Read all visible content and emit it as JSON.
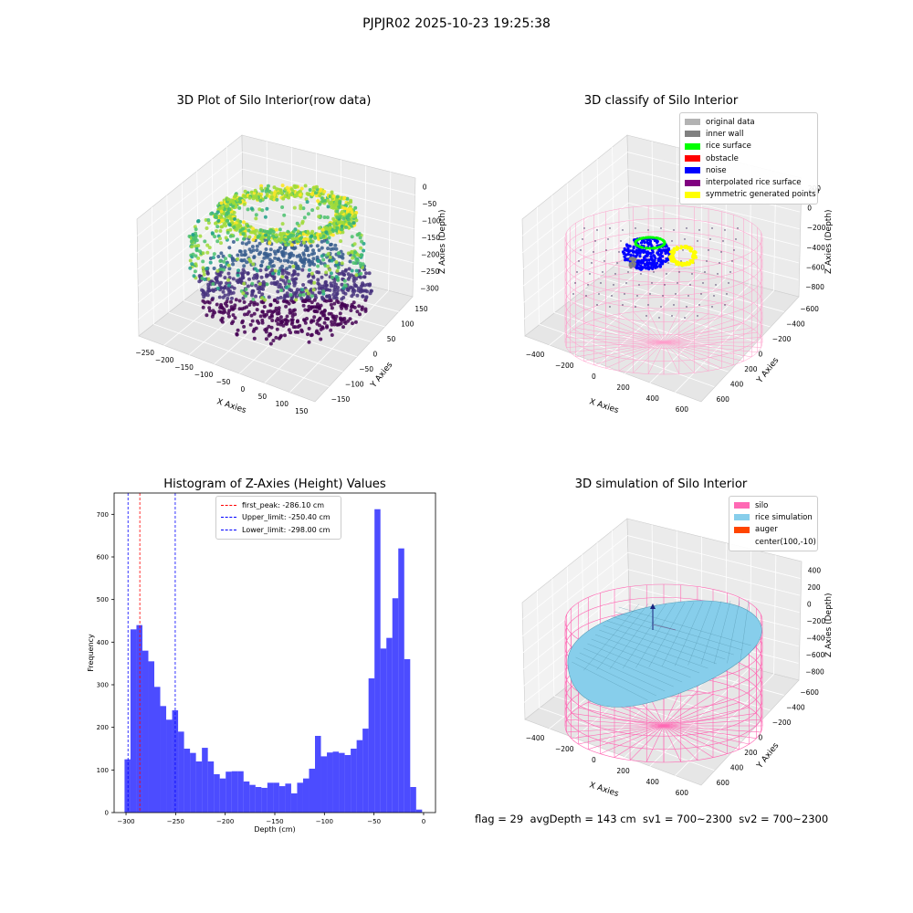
{
  "suptitle": "PJPJR02 2025-10-23 19:25:38",
  "panels": {
    "raw": {
      "title": "3D Plot of Silo Interior(row data)",
      "xlabel": "X Axies",
      "ylabel": "Y Axies",
      "zlabel": "Z Axies (Depth)",
      "xticks": [
        "−250",
        "−200",
        "−150",
        "−100",
        "−50",
        "0",
        "50",
        "100",
        "150"
      ],
      "yticks": [
        "−150",
        "−100",
        "−50",
        "0",
        "50",
        "100",
        "150"
      ],
      "zticks": [
        "0",
        "−50",
        "−100",
        "−150",
        "−200",
        "−250",
        "−300"
      ]
    },
    "classify": {
      "title": "3D classify of Silo Interior",
      "xlabel": "X Axies",
      "ylabel": "Y Axies",
      "zlabel": "Z Axies (Depth)",
      "xticks": [
        "−400",
        "−200",
        "0",
        "200",
        "400",
        "600"
      ],
      "yticks": [
        "600",
        "400",
        "200",
        "0",
        "−200",
        "−400",
        "−600"
      ],
      "zticks": [
        "200",
        "0",
        "−200",
        "−400",
        "−600",
        "−800"
      ],
      "legend": [
        {
          "label": "original data",
          "color": "#b3b3b3"
        },
        {
          "label": "inner wall",
          "color": "#808080"
        },
        {
          "label": "rice surface",
          "color": "#00ff00"
        },
        {
          "label": "obstacle",
          "color": "#ff0000"
        },
        {
          "label": "noise",
          "color": "#0000ff"
        },
        {
          "label": "interpolated rice surface",
          "color": "#800080"
        },
        {
          "label": "symmetric generated points",
          "color": "#ffff00"
        }
      ],
      "overflow_tick": "00"
    },
    "simulation": {
      "title": "3D simulation of Silo Interior",
      "xlabel": "X Axies",
      "ylabel": "Y Axies",
      "zlabel": "Z Axies (Depth)",
      "xticks": [
        "−400",
        "−200",
        "0",
        "200",
        "400",
        "600"
      ],
      "yticks": [
        "600",
        "400",
        "200",
        "0",
        "−200",
        "−400",
        "−600"
      ],
      "zticks": [
        "400",
        "200",
        "0",
        "−200",
        "−400",
        "−600",
        "−800"
      ],
      "legend": [
        {
          "label": "silo",
          "color": "#ff69b4"
        },
        {
          "label": "rice simulation",
          "color": "#87ceeb"
        },
        {
          "label": "auger",
          "color": "#ff4500"
        },
        {
          "label": "center(100,-10)",
          "color": ""
        }
      ]
    }
  },
  "footer": "flag = 29  avgDepth = 143 cm  sv1 = 700~2300  sv2 = 700~2300",
  "chart_data": {
    "type": "bar",
    "title": "Histogram of Z-Axies (Height) Values",
    "xlabel": "Depth (cm)",
    "ylabel": "Frequency",
    "bar_color": "#0000ff",
    "bin_width": 6,
    "bin_start": -301.5,
    "values": [
      125,
      430,
      440,
      380,
      355,
      295,
      250,
      218,
      240,
      190,
      150,
      140,
      120,
      152,
      120,
      90,
      80,
      96,
      97,
      97,
      73,
      65,
      60,
      58,
      70,
      70,
      62,
      68,
      45,
      70,
      80,
      103,
      180,
      132,
      141,
      143,
      140,
      135,
      150,
      170,
      197,
      315,
      712,
      385,
      410,
      503,
      620,
      360,
      60,
      7
    ],
    "xlim": [
      -312,
      12
    ],
    "ylim": [
      0,
      750
    ],
    "xticks": [
      -300,
      -250,
      -200,
      -150,
      -100,
      -50,
      0
    ],
    "yticks": [
      0,
      100,
      200,
      300,
      400,
      500,
      600,
      700
    ],
    "vlines": [
      {
        "x": -286.1,
        "color": "#ff0000",
        "label": "first_peak: -286.10 cm"
      },
      {
        "x": -250.4,
        "color": "#0000ff",
        "label": "Upper_limit: -250.40 cm"
      },
      {
        "x": -298.0,
        "color": "#0000ff",
        "label": "Lower_limit: -298.00 cm"
      }
    ]
  }
}
